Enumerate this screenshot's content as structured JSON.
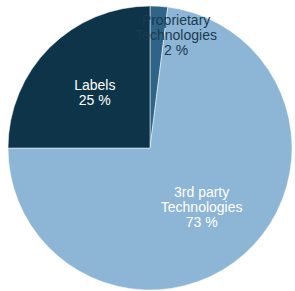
{
  "chart_data": {
    "type": "pie",
    "categories": [
      "Proprietary Technologies",
      "3rd party Technologies",
      "Labels"
    ],
    "values": [
      2,
      73,
      25
    ],
    "value_labels": [
      "2 %",
      "73 %",
      "25 %"
    ],
    "colors": [
      "#2f6486",
      "#8db5d5",
      "#0d3449"
    ],
    "data_labels": true
  }
}
